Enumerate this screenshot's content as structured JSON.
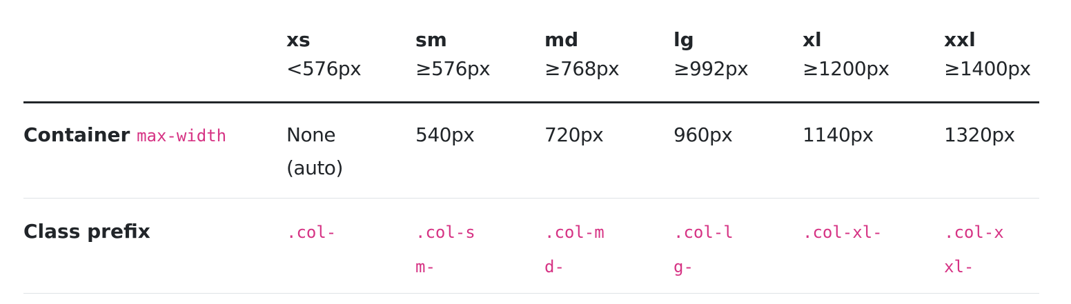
{
  "table": {
    "breakpoints": [
      {
        "name": "xs",
        "range": "<576px"
      },
      {
        "name": "sm",
        "range": "≥576px"
      },
      {
        "name": "md",
        "range": "≥768px"
      },
      {
        "name": "lg",
        "range": "≥992px"
      },
      {
        "name": "xl",
        "range": "≥1200px"
      },
      {
        "name": "xxl",
        "range": "≥1400px"
      }
    ],
    "rows": {
      "container": {
        "label": "Container",
        "label_code": "max-width",
        "values": [
          "None (auto)",
          "540px",
          "720px",
          "960px",
          "1140px",
          "1320px"
        ]
      },
      "class_prefix": {
        "label": "Class prefix",
        "values": [
          ".col-",
          ".col-sm-",
          ".col-md-",
          ".col-lg-",
          ".col-xl-",
          ".col-xxl-"
        ]
      }
    }
  }
}
